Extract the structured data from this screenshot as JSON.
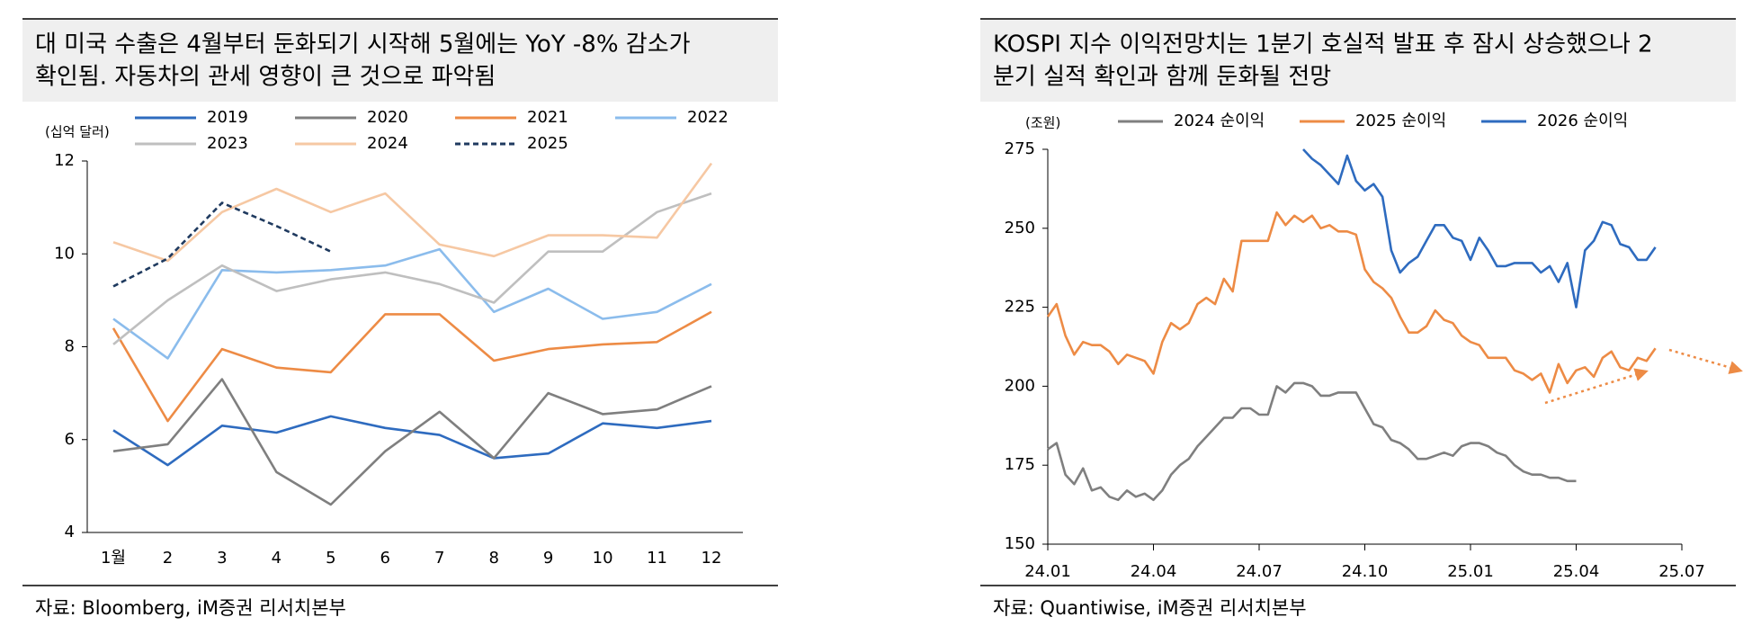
{
  "chart_data": [
    {
      "type": "line",
      "title": [
        "대 미국 수출은 4월부터 둔화되기 시작해 5월에는 YoY -8% 감소가",
        "확인됨. 자동차의 관세 영향이 큰 것으로 파악됨"
      ],
      "y_label": "(십억 달러)",
      "source": "자료: Bloomberg, iM증권 리서치본부",
      "categories": [
        "1월",
        "2",
        "3",
        "4",
        "5",
        "6",
        "7",
        "8",
        "9",
        "10",
        "11",
        "12"
      ],
      "ylim": [
        4,
        12
      ],
      "yticks": [
        4,
        6,
        8,
        10,
        12
      ],
      "series": [
        {
          "name": "2019",
          "color": "#2e6bbf",
          "values": [
            6.2,
            5.45,
            6.3,
            6.15,
            6.5,
            6.25,
            6.1,
            5.6,
            5.7,
            6.35,
            6.25,
            6.4
          ]
        },
        {
          "name": "2020",
          "color": "#7f7f7f",
          "values": [
            5.75,
            5.9,
            7.3,
            5.3,
            4.6,
            5.75,
            6.6,
            5.6,
            7.0,
            6.55,
            6.65,
            7.15
          ]
        },
        {
          "name": "2021",
          "color": "#ed8b45",
          "values": [
            8.4,
            6.4,
            7.95,
            7.55,
            7.45,
            8.7,
            8.7,
            7.7,
            7.95,
            8.05,
            8.1,
            8.75
          ]
        },
        {
          "name": "2022",
          "color": "#8bbcec",
          "values": [
            8.6,
            7.75,
            9.65,
            9.6,
            9.65,
            9.75,
            10.1,
            8.75,
            9.25,
            8.6,
            8.75,
            9.35
          ]
        },
        {
          "name": "2023",
          "color": "#bfbfbf",
          "values": [
            8.05,
            9.0,
            9.75,
            9.2,
            9.45,
            9.6,
            9.35,
            8.95,
            10.05,
            10.05,
            10.9,
            11.3
          ]
        },
        {
          "name": "2024",
          "color": "#f6c8a3",
          "values": [
            10.25,
            9.85,
            10.9,
            11.4,
            10.9,
            11.3,
            10.2,
            9.95,
            10.4,
            10.4,
            10.35,
            11.95
          ]
        },
        {
          "name": "2025",
          "color": "#1f3a5f",
          "dashed": true,
          "values": [
            9.3,
            9.9,
            11.1,
            10.6,
            10.05,
            null,
            null,
            null,
            null,
            null,
            null,
            null
          ]
        }
      ]
    },
    {
      "type": "line",
      "title": [
        "KOSPI 지수 이익전망치는 1분기 호실적 발표 후 잠시 상승했으나 2",
        "분기 실적 확인과 함께 둔화될 전망"
      ],
      "y_label": "(조원)",
      "source": "자료: Quantiwise, iM증권 리서치본부",
      "x": [
        0,
        0.25,
        0.5,
        0.75,
        1,
        1.25,
        1.5,
        1.75,
        2,
        2.25,
        2.5,
        2.75,
        3,
        3.25,
        3.5,
        3.75,
        4,
        4.25,
        4.5,
        4.75,
        5,
        5.25,
        5.5,
        5.75,
        6,
        6.25,
        6.5,
        6.75,
        7,
        7.25,
        7.5,
        7.75,
        8,
        8.25,
        8.5,
        8.75,
        9,
        9.25,
        9.5,
        9.75,
        10,
        10.25,
        10.5,
        10.75,
        11,
        11.25,
        11.5,
        11.75,
        12,
        12.25,
        12.5,
        12.75,
        13,
        13.25,
        13.5,
        13.75,
        14,
        14.25,
        14.5,
        14.75,
        15,
        15.25,
        15.5,
        15.75,
        16,
        16.25,
        16.5,
        16.75,
        17,
        17.25
      ],
      "xlim": [
        0,
        18
      ],
      "xticks": [
        {
          "value": 0,
          "label": "24.01"
        },
        {
          "value": 3,
          "label": "24.04"
        },
        {
          "value": 6,
          "label": "24.07"
        },
        {
          "value": 9,
          "label": "24.10"
        },
        {
          "value": 12,
          "label": "25.01"
        },
        {
          "value": 15,
          "label": "25.04"
        },
        {
          "value": 18,
          "label": "25.07"
        }
      ],
      "ylim": [
        150,
        275
      ],
      "yticks": [
        150,
        175,
        200,
        225,
        250,
        275
      ],
      "series": [
        {
          "name": "2024 순이익",
          "color": "#7f7f7f",
          "values": [
            180,
            182,
            172,
            169,
            174,
            167,
            168,
            165,
            164,
            167,
            165,
            166,
            164,
            167,
            172,
            175,
            177,
            181,
            184,
            187,
            190,
            190,
            193,
            193,
            191,
            191,
            200,
            198,
            201,
            201,
            200,
            197,
            197,
            198,
            198,
            198,
            193,
            188,
            187,
            183,
            182,
            180,
            177,
            177,
            178,
            179,
            178,
            181,
            182,
            182,
            181,
            179,
            178,
            175,
            173,
            172,
            172,
            171,
            171,
            170,
            170,
            null,
            null,
            null,
            null,
            null,
            null,
            null,
            null,
            null
          ]
        },
        {
          "name": "2025 순이익",
          "color": "#ed8b45",
          "values": [
            222,
            226,
            216,
            210,
            214,
            213,
            213,
            211,
            207,
            210,
            209,
            208,
            204,
            214,
            220,
            218,
            220,
            226,
            228,
            226,
            234,
            230,
            246,
            246,
            246,
            246,
            255,
            251,
            254,
            252,
            254,
            250,
            251,
            249,
            249,
            248,
            237,
            233,
            231,
            228,
            222,
            217,
            217,
            219,
            224,
            221,
            220,
            216,
            214,
            213,
            209,
            209,
            209,
            205,
            204,
            202,
            204,
            198,
            207,
            201,
            205,
            206,
            203,
            209,
            211,
            206,
            205,
            209,
            208,
            212
          ]
        },
        {
          "name": "2026 순이익",
          "color": "#2e6bbf",
          "values": [
            null,
            null,
            null,
            null,
            null,
            null,
            null,
            null,
            null,
            null,
            null,
            null,
            null,
            null,
            null,
            null,
            null,
            null,
            null,
            null,
            null,
            null,
            null,
            null,
            null,
            null,
            null,
            null,
            null,
            275,
            272,
            270,
            267,
            264,
            273,
            265,
            262,
            264,
            260,
            243,
            236,
            239,
            241,
            246,
            251,
            251,
            247,
            246,
            240,
            247,
            243,
            238,
            238,
            239,
            239,
            239,
            236,
            238,
            233,
            239,
            225,
            243,
            246,
            252,
            251,
            245,
            244,
            240,
            240,
            244
          ]
        }
      ]
    }
  ]
}
